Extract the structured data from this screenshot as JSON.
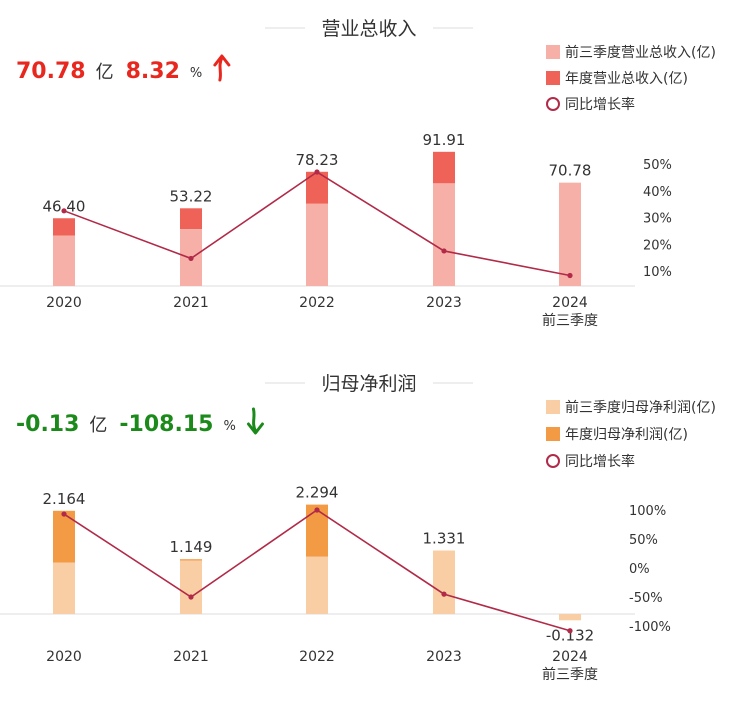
{
  "chart_data": [
    {
      "type": "bar",
      "title": "营业总收入",
      "headline": {
        "value": "70.78",
        "value_unit": "亿",
        "growth": "8.32",
        "growth_unit": "%",
        "trend": "up",
        "trend_icon": "arrow-up-icon",
        "color": "#e8281e"
      },
      "categories": [
        "2020",
        "2021",
        "2022",
        "2023",
        "2024"
      ],
      "category_sublabels": [
        "",
        "",
        "",
        "",
        "前三季度"
      ],
      "series": [
        {
          "name": "前三季度营业总收入(亿)",
          "color": "#f6b0a8",
          "values": [
            34.6,
            39.0,
            56.3,
            70.3,
            70.78
          ]
        },
        {
          "name": "年度营业总收入(亿)",
          "color": "#ef6257",
          "values": [
            46.4,
            53.22,
            78.23,
            91.91,
            null
          ]
        },
        {
          "name": "同比增长率",
          "color": "#b12a48",
          "type": "line",
          "values": [
            32.5,
            14.7,
            47.0,
            17.5,
            8.32
          ]
        }
      ],
      "data_labels": [
        "46.40",
        "53.22",
        "78.23",
        "91.91",
        "70.78"
      ],
      "ylim_left": [
        0,
        100
      ],
      "ylim_right": [
        -10,
        60
      ],
      "right_ticks": [
        "10%",
        "20%",
        "30%",
        "40%",
        "50%"
      ],
      "legend_position": "top-right"
    },
    {
      "type": "bar",
      "title": "归母净利润",
      "headline": {
        "value": "-0.13",
        "value_unit": "亿",
        "growth": "-108.15",
        "growth_unit": "%",
        "trend": "down",
        "trend_icon": "arrow-down-icon",
        "color": "#1b8a1b"
      },
      "categories": [
        "2020",
        "2021",
        "2022",
        "2023",
        "2024"
      ],
      "category_sublabels": [
        "",
        "",
        "",
        "",
        "前三季度"
      ],
      "series": [
        {
          "name": "前三季度归母净利润(亿)",
          "color": "#f9ceA4",
          "values": [
            1.08,
            1.12,
            1.2,
            1.331,
            -0.132
          ]
        },
        {
          "name": "年度归母净利润(亿)",
          "color": "#f39a45",
          "values": [
            2.164,
            1.149,
            2.294,
            null,
            null
          ]
        },
        {
          "name": "同比增长率",
          "color": "#b12a48",
          "type": "line",
          "values": [
            93,
            -50,
            100,
            -45,
            -108.15
          ]
        }
      ],
      "data_labels": [
        "2.164",
        "1.149",
        "2.294",
        "1.331",
        "-0.132"
      ],
      "ylim_left": [
        -0.3,
        2.6
      ],
      "ylim_right": [
        -120,
        120
      ],
      "right_ticks": [
        "100%",
        "50%",
        "0%",
        "-50%",
        "-100%"
      ],
      "legend_position": "top-right"
    }
  ]
}
